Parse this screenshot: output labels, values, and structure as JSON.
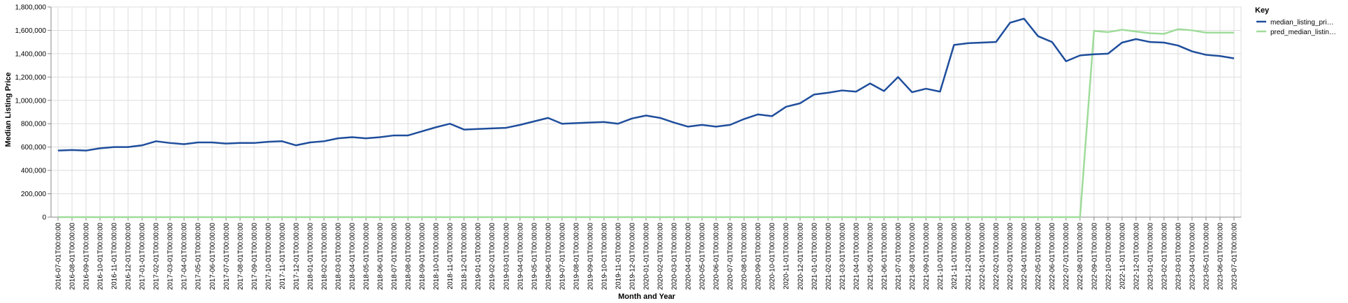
{
  "chart_data": {
    "type": "line",
    "xlabel": "Month and Year",
    "ylabel": "Median Listing Price",
    "ylim": [
      0,
      1800000
    ],
    "yticks": [
      0,
      200000,
      400000,
      600000,
      800000,
      1000000,
      1200000,
      1400000,
      1600000,
      1800000
    ],
    "ytick_labels": [
      "0",
      "200,000",
      "400,000",
      "600,000",
      "800,000",
      "1,000,000",
      "1,200,000",
      "1,400,000",
      "1,600,000",
      "1,800,000"
    ],
    "grid": true,
    "legend": {
      "title": "Key",
      "placement": "right",
      "labels": [
        "median_listing_pri…",
        "pred_median_listin…"
      ]
    },
    "x": [
      "2016-07-01T00:00:00",
      "2016-08-01T00:00:00",
      "2016-09-01T00:00:00",
      "2016-10-01T00:00:00",
      "2016-11-01T00:00:00",
      "2016-12-01T00:00:00",
      "2017-01-01T00:00:00",
      "2017-02-01T00:00:00",
      "2017-03-01T00:00:00",
      "2017-04-01T00:00:00",
      "2017-05-01T00:00:00",
      "2017-06-01T00:00:00",
      "2017-07-01T00:00:00",
      "2017-08-01T00:00:00",
      "2017-09-01T00:00:00",
      "2017-10-01T00:00:00",
      "2017-11-01T00:00:00",
      "2017-12-01T00:00:00",
      "2018-01-01T00:00:00",
      "2018-02-01T00:00:00",
      "2018-03-01T00:00:00",
      "2018-04-01T00:00:00",
      "2018-05-01T00:00:00",
      "2018-06-01T00:00:00",
      "2018-07-01T00:00:00",
      "2018-08-01T00:00:00",
      "2018-09-01T00:00:00",
      "2018-10-01T00:00:00",
      "2018-11-01T00:00:00",
      "2018-12-01T00:00:00",
      "2019-01-01T00:00:00",
      "2019-02-01T00:00:00",
      "2019-03-01T00:00:00",
      "2019-04-01T00:00:00",
      "2019-05-01T00:00:00",
      "2019-06-01T00:00:00",
      "2019-07-01T00:00:00",
      "2019-08-01T00:00:00",
      "2019-09-01T00:00:00",
      "2019-10-01T00:00:00",
      "2019-11-01T00:00:00",
      "2019-12-01T00:00:00",
      "2020-01-01T00:00:00",
      "2020-02-01T00:00:00",
      "2020-03-01T00:00:00",
      "2020-04-01T00:00:00",
      "2020-05-01T00:00:00",
      "2020-06-01T00:00:00",
      "2020-07-01T00:00:00",
      "2020-08-01T00:00:00",
      "2020-09-01T00:00:00",
      "2020-10-01T00:00:00",
      "2020-11-01T00:00:00",
      "2020-12-01T00:00:00",
      "2021-01-01T00:00:00",
      "2021-02-01T00:00:00",
      "2021-03-01T00:00:00",
      "2021-04-01T00:00:00",
      "2021-05-01T00:00:00",
      "2021-06-01T00:00:00",
      "2021-07-01T00:00:00",
      "2021-08-01T00:00:00",
      "2021-09-01T00:00:00",
      "2021-10-01T00:00:00",
      "2021-11-01T00:00:00",
      "2021-12-01T00:00:00",
      "2022-01-01T00:00:00",
      "2022-02-01T00:00:00",
      "2022-03-01T00:00:00",
      "2022-04-01T00:00:00",
      "2022-05-01T00:00:00",
      "2022-06-01T00:00:00",
      "2022-07-01T00:00:00",
      "2022-08-01T00:00:00",
      "2022-09-01T00:00:00",
      "2022-10-01T00:00:00",
      "2022-11-01T00:00:00",
      "2022-12-01T00:00:00",
      "2023-01-01T00:00:00",
      "2023-02-01T00:00:00",
      "2023-03-01T00:00:00",
      "2023-04-01T00:00:00",
      "2023-05-01T00:00:00",
      "2023-06-01T00:00:00",
      "2023-07-01T00:00:00"
    ],
    "series": [
      {
        "name": "median_listing_pri…",
        "color": "#1f4e9c",
        "values": [
          570000,
          575000,
          570000,
          590000,
          600000,
          600000,
          615000,
          650000,
          635000,
          625000,
          640000,
          640000,
          630000,
          635000,
          635000,
          645000,
          650000,
          615000,
          640000,
          650000,
          675000,
          685000,
          675000,
          685000,
          700000,
          700000,
          735000,
          770000,
          800000,
          750000,
          755000,
          760000,
          765000,
          790000,
          820000,
          850000,
          800000,
          805000,
          810000,
          815000,
          800000,
          845000,
          870000,
          850000,
          810000,
          775000,
          790000,
          775000,
          790000,
          840000,
          880000,
          865000,
          945000,
          975000,
          1050000,
          1065000,
          1085000,
          1075000,
          1145000,
          1080000,
          1200000,
          1070000,
          1100000,
          1075000,
          1475000,
          1490000,
          1495000,
          1500000,
          1665000,
          1700000,
          1550000,
          1500000,
          1335000,
          1385000,
          1395000,
          1400000,
          1495000,
          1525000,
          1500000,
          1495000,
          1470000,
          1420000,
          1390000,
          1380000,
          1360000
        ]
      },
      {
        "name": "pred_median_listin…",
        "color": "#9fdc9a",
        "values": [
          0,
          0,
          0,
          0,
          0,
          0,
          0,
          0,
          0,
          0,
          0,
          0,
          0,
          0,
          0,
          0,
          0,
          0,
          0,
          0,
          0,
          0,
          0,
          0,
          0,
          0,
          0,
          0,
          0,
          0,
          0,
          0,
          0,
          0,
          0,
          0,
          0,
          0,
          0,
          0,
          0,
          0,
          0,
          0,
          0,
          0,
          0,
          0,
          0,
          0,
          0,
          0,
          0,
          0,
          0,
          0,
          0,
          0,
          0,
          0,
          0,
          0,
          0,
          0,
          0,
          0,
          0,
          0,
          0,
          0,
          0,
          0,
          0,
          0,
          1595000,
          1585000,
          1605000,
          1590000,
          1575000,
          1570000,
          1610000,
          1600000,
          1580000,
          1580000,
          1580000
        ]
      }
    ]
  }
}
